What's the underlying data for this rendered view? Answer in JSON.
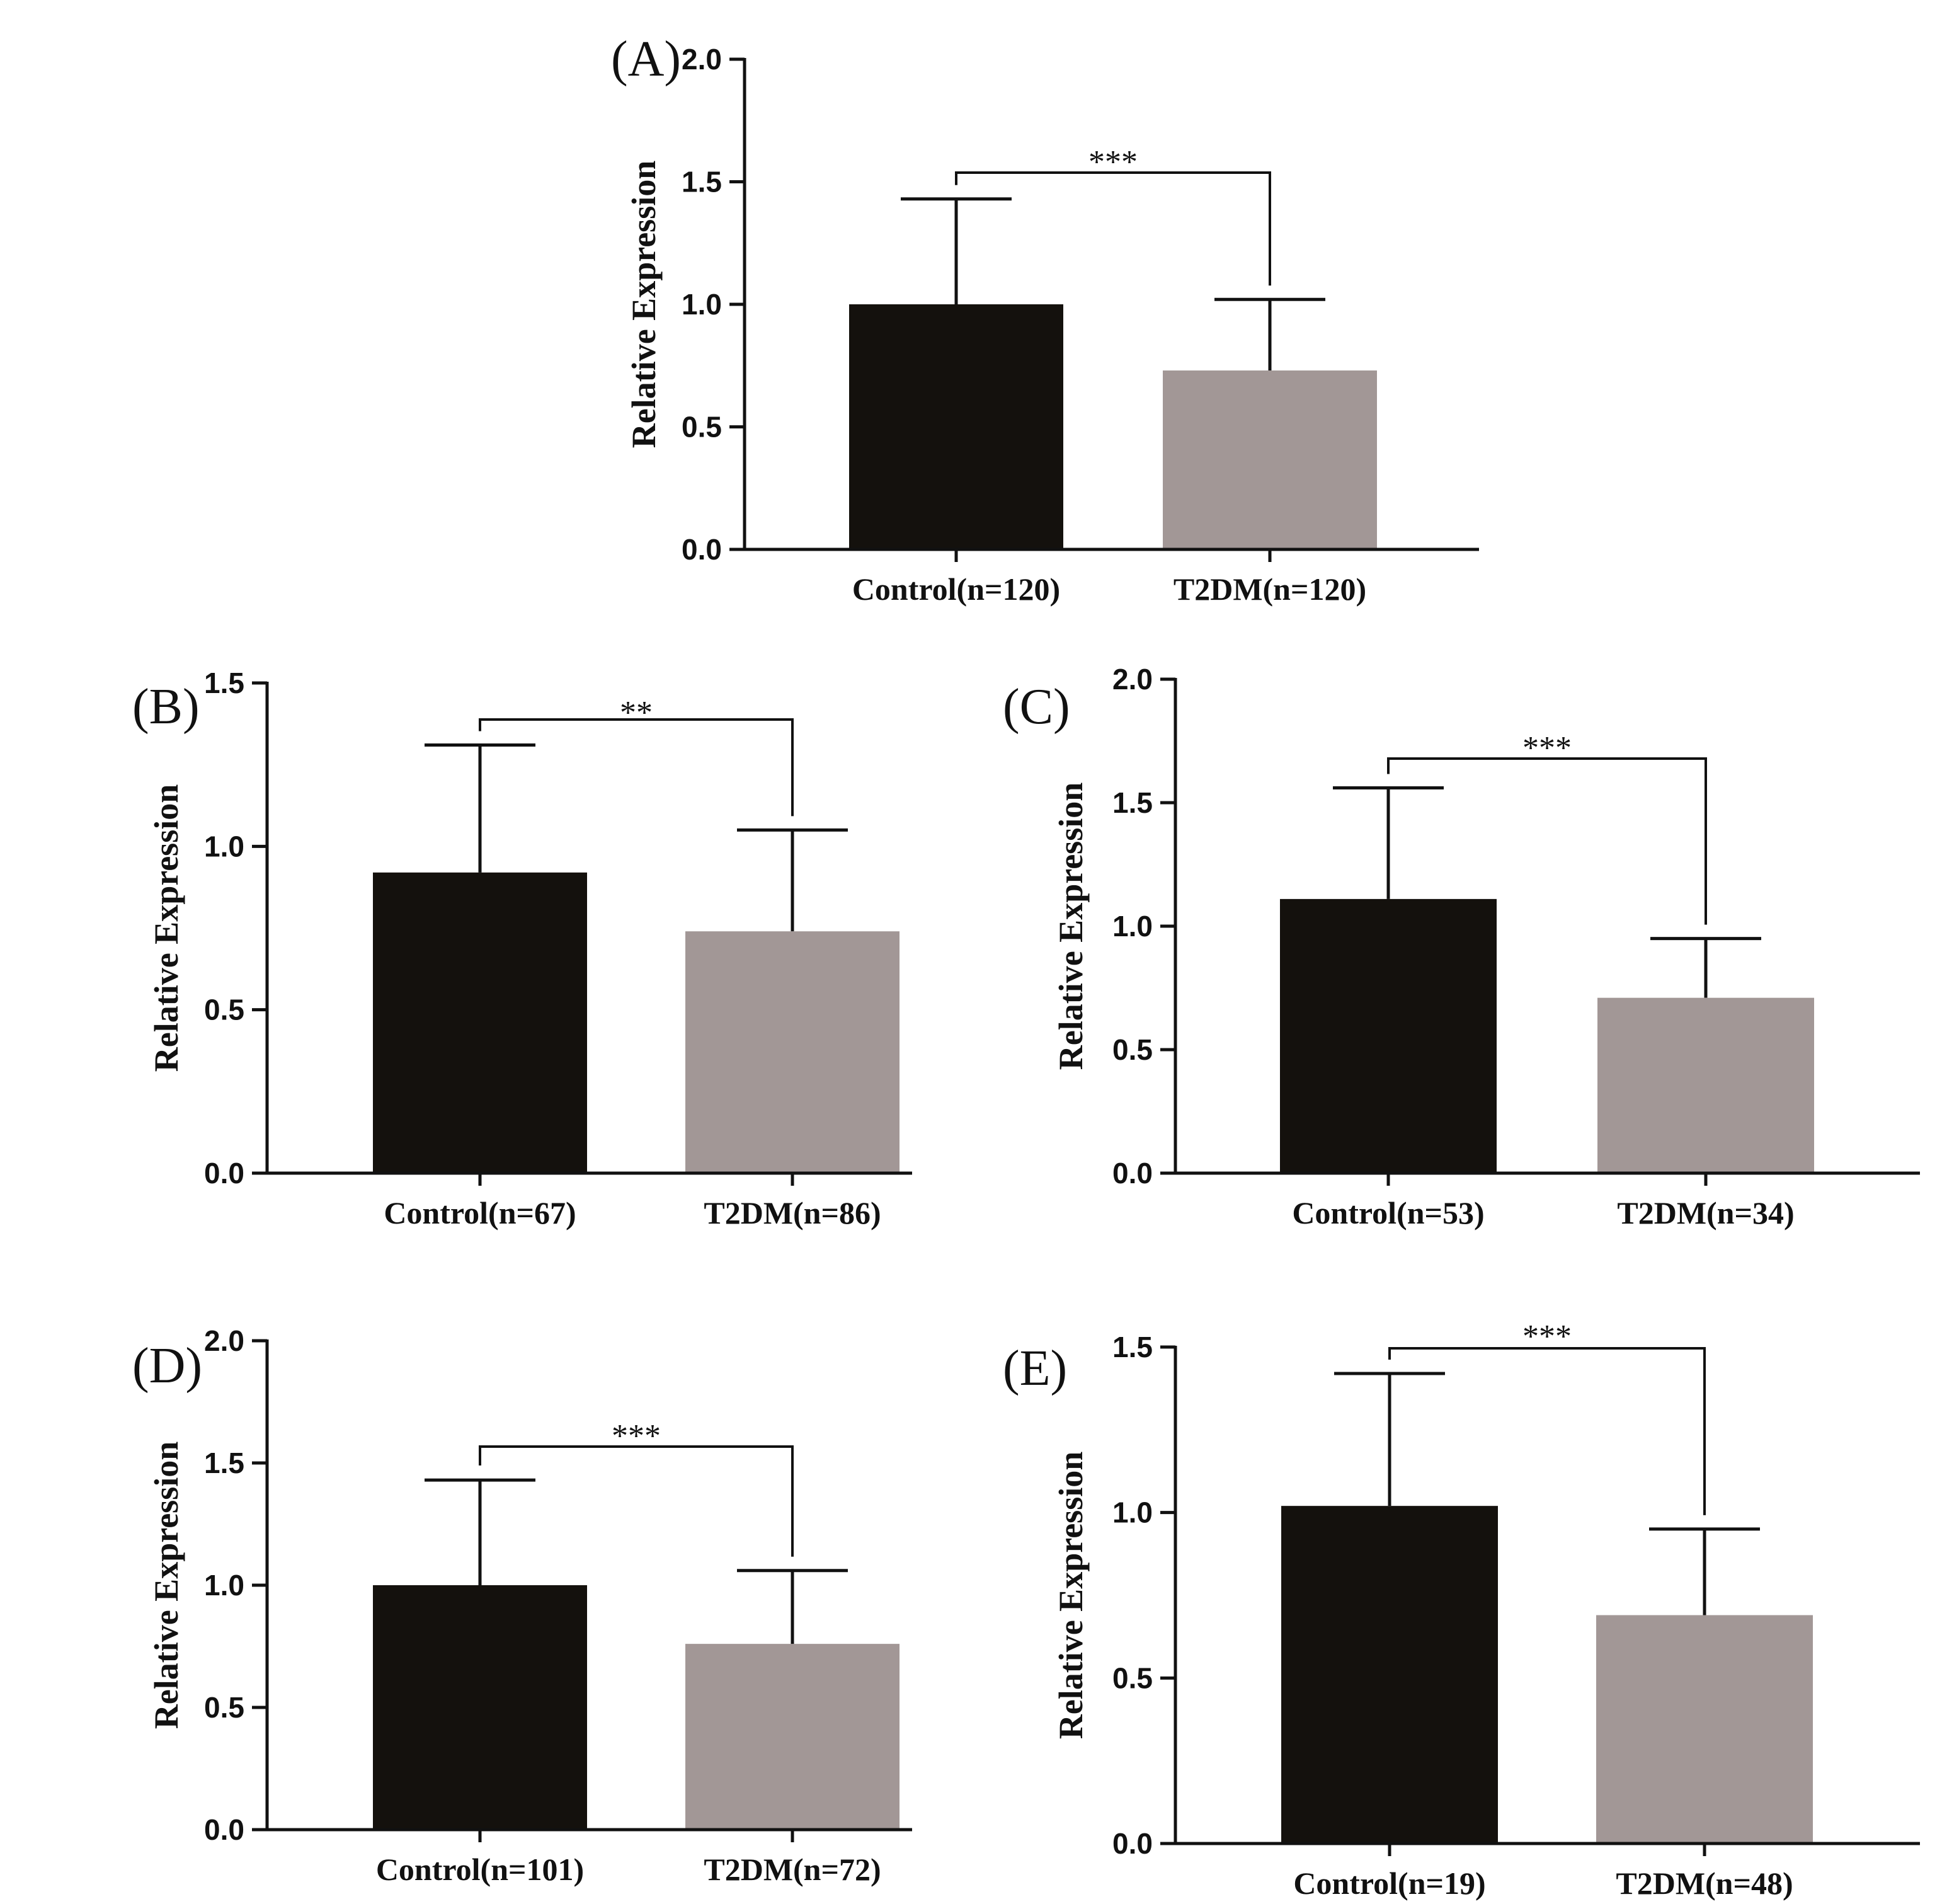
{
  "figure": {
    "colors": {
      "control": "#14110d",
      "t2dm": "#a29796",
      "axis": "#111111"
    }
  },
  "chart_data": [
    {
      "panel": "(A)",
      "type": "bar",
      "ylabel": "Relative Expression",
      "ylim": [
        0,
        2.0
      ],
      "yticks": [
        "0.0",
        "0.5",
        "1.0",
        "1.5",
        "2.0"
      ],
      "categories": [
        "Control(n=120)",
        "T2DM(n=120)"
      ],
      "values": [
        1.0,
        0.73
      ],
      "errors": [
        0.43,
        0.29
      ],
      "significance": "***"
    },
    {
      "panel": "(B)",
      "type": "bar",
      "ylabel": "Relative Expression",
      "ylim": [
        0,
        1.5
      ],
      "yticks": [
        "0.0",
        "0.5",
        "1.0",
        "1.5"
      ],
      "categories": [
        "Control(n=67)",
        "T2DM(n=86)"
      ],
      "values": [
        0.92,
        0.74
      ],
      "errors": [
        0.39,
        0.31
      ],
      "significance": "**"
    },
    {
      "panel": "(C)",
      "type": "bar",
      "ylabel": "Relative Expression",
      "ylim": [
        0,
        2.0
      ],
      "yticks": [
        "0.0",
        "0.5",
        "1.0",
        "1.5",
        "2.0"
      ],
      "categories": [
        "Control(n=53)",
        "T2DM(n=34)"
      ],
      "values": [
        1.11,
        0.71
      ],
      "errors": [
        0.45,
        0.24
      ],
      "significance": "***"
    },
    {
      "panel": "(D)",
      "type": "bar",
      "ylabel": "Relative Expression",
      "ylim": [
        0,
        2.0
      ],
      "yticks": [
        "0.0",
        "0.5",
        "1.0",
        "1.5",
        "2.0"
      ],
      "categories": [
        "Control(n=101)",
        "T2DM(n=72)"
      ],
      "values": [
        1.0,
        0.76
      ],
      "errors": [
        0.43,
        0.3
      ],
      "significance": "***"
    },
    {
      "panel": "(E)",
      "type": "bar",
      "ylabel": "Relative Expression",
      "ylim": [
        0,
        1.5
      ],
      "yticks": [
        "0.0",
        "0.5",
        "1.0",
        "1.5"
      ],
      "categories": [
        "Control(n=19)",
        "T2DM(n=48)"
      ],
      "values": [
        1.02,
        0.69
      ],
      "errors": [
        0.4,
        0.26
      ],
      "significance": "***"
    }
  ]
}
